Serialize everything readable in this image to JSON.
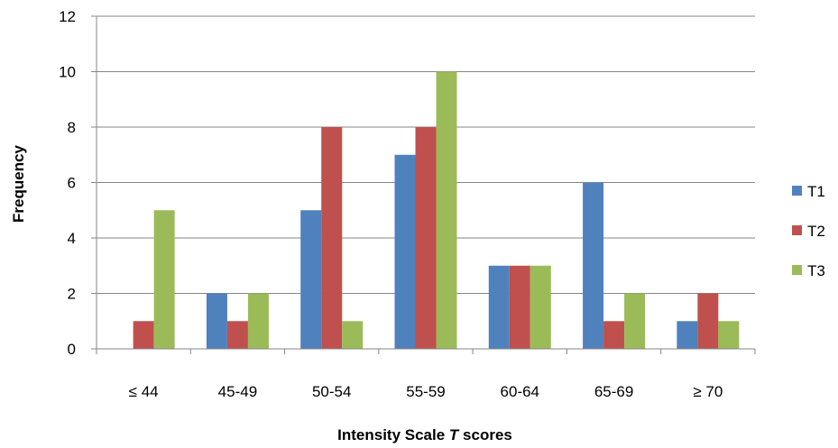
{
  "chart_data": {
    "type": "bar",
    "title": "",
    "xlabel_parts": [
      "Intensity Scale ",
      "T",
      " scores"
    ],
    "ylabel": "Frequency",
    "categories": [
      "≤ 44",
      "45-49",
      "50-54",
      "55-59",
      "60-64",
      "65-69",
      "≥ 70"
    ],
    "series": [
      {
        "name": "T1",
        "color": "#4F81BD",
        "values": [
          0,
          2,
          5,
          7,
          3,
          6,
          1
        ]
      },
      {
        "name": "T2",
        "color": "#C0504D",
        "values": [
          1,
          1,
          8,
          8,
          3,
          1,
          2
        ]
      },
      {
        "name": "T3",
        "color": "#9BBB59",
        "values": [
          5,
          2,
          1,
          10,
          3,
          2,
          1
        ]
      }
    ],
    "ylim": [
      0,
      12
    ],
    "yticks": [
      0,
      2,
      4,
      6,
      8,
      10,
      12
    ],
    "grid": true,
    "legend_position": "right"
  }
}
